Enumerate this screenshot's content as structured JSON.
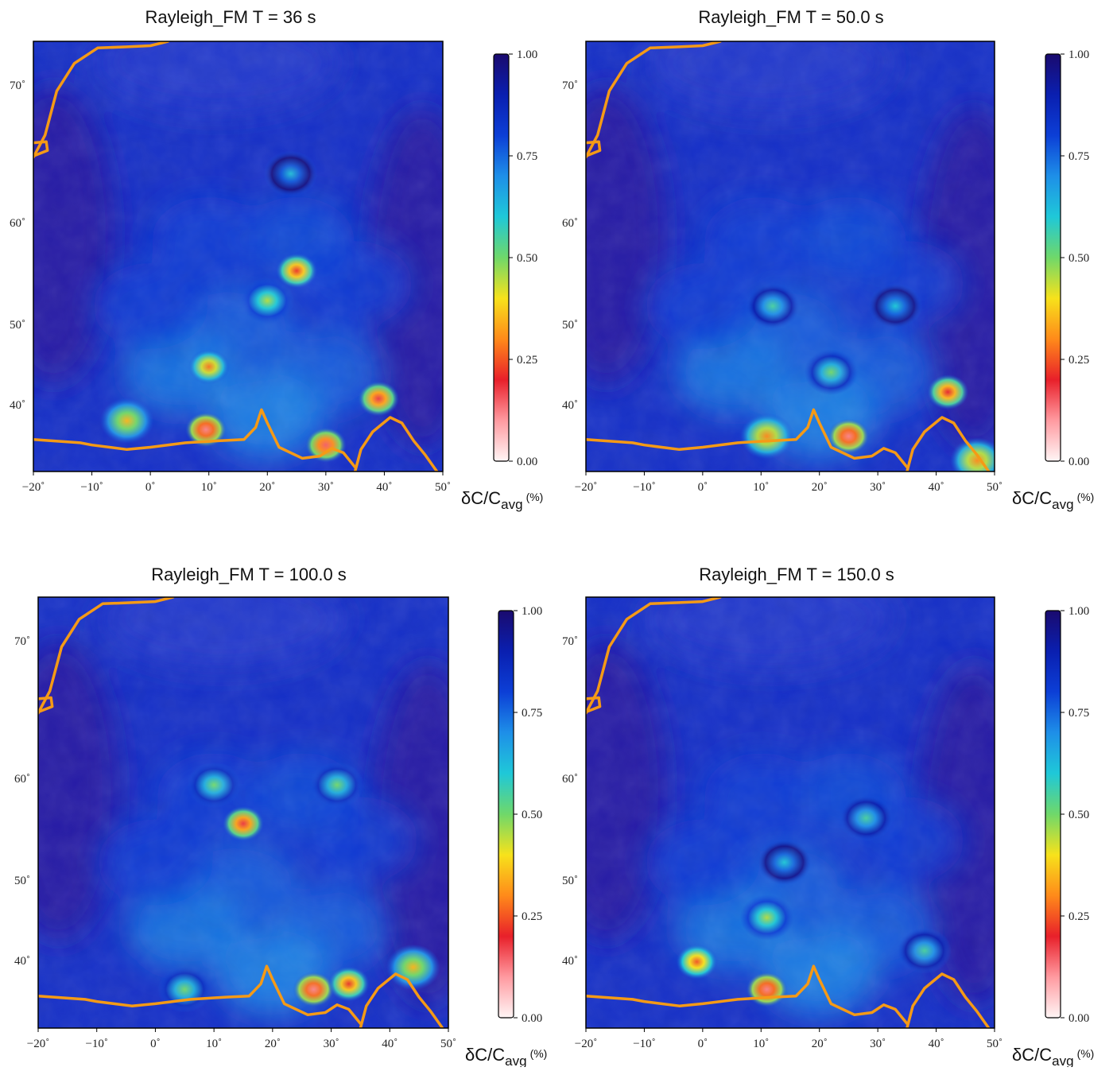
{
  "colors": {
    "colormap": [
      "#fff5f5",
      "#ff9aa0",
      "#e8202a",
      "#ff8a1a",
      "#f7e21b",
      "#6fd86a",
      "#1fc8d8",
      "#1e8fe8",
      "#0c3fd6",
      "#0a1fb0",
      "#1a0a6e"
    ],
    "base": "#1630c8",
    "deep": "#2a1aa0",
    "plate_boundary": "#f59a16",
    "frame": "#000000"
  },
  "chart_data": [
    {
      "type": "heatmap",
      "title": "Rayleigh_FM T = 36 s",
      "xlim": [
        -20,
        50
      ],
      "ylim": [
        35,
        74
      ],
      "x_ticks": [
        "−20˚",
        "−10˚",
        "0˚",
        "10˚",
        "20˚",
        "30˚",
        "40˚",
        "50˚"
      ],
      "y_ticks": [
        "70˚",
        "60˚",
        "50˚",
        "40˚"
      ],
      "colorbar": {
        "ticks": [
          "1.00",
          "0.75",
          "0.50",
          "0.25",
          "0.00"
        ],
        "range": [
          0,
          1
        ]
      },
      "unit": {
        "main": "δC/C",
        "sub": "avg",
        "suffix": "(%)"
      },
      "anomalies": [
        {
          "lon": 25,
          "lat": 53.2,
          "value": 0.22
        },
        {
          "lon": 10,
          "lat": 44.5,
          "value": 0.28
        },
        {
          "lon": 9.5,
          "lat": 38.8,
          "value": 0.12
        },
        {
          "lon": 39,
          "lat": 41.6,
          "value": 0.18
        },
        {
          "lon": 30,
          "lat": 37.4,
          "value": 0.15
        },
        {
          "lon": -4,
          "lat": 39.6,
          "value": 0.35
        },
        {
          "lon": 20,
          "lat": 50.5,
          "value": 0.45
        },
        {
          "lon": 24,
          "lat": 62,
          "value": 0.62
        }
      ]
    },
    {
      "type": "heatmap",
      "title": "Rayleigh_FM T = 50.0 s",
      "xlim": [
        -20,
        50
      ],
      "ylim": [
        35,
        74
      ],
      "x_ticks": [
        "−20˚",
        "−10˚",
        "0˚",
        "10˚",
        "20˚",
        "30˚",
        "40˚",
        "50˚"
      ],
      "y_ticks": [
        "70˚",
        "60˚",
        "50˚",
        "40˚"
      ],
      "colorbar": {
        "ticks": [
          "1.00",
          "0.75",
          "0.50",
          "0.25",
          "0.00"
        ],
        "range": [
          0,
          1
        ]
      },
      "unit": {
        "main": "δC/C",
        "sub": "avg",
        "suffix": "(%)"
      },
      "anomalies": [
        {
          "lon": 42,
          "lat": 42.2,
          "value": 0.2
        },
        {
          "lon": 25,
          "lat": 38.2,
          "value": 0.12
        },
        {
          "lon": 11,
          "lat": 38.2,
          "value": 0.3
        },
        {
          "lon": 12,
          "lat": 50,
          "value": 0.55
        },
        {
          "lon": 22,
          "lat": 44,
          "value": 0.5
        },
        {
          "lon": 33,
          "lat": 50,
          "value": 0.6
        },
        {
          "lon": 47,
          "lat": 36,
          "value": 0.3
        }
      ]
    },
    {
      "type": "heatmap",
      "title": "Rayleigh_FM T = 100.0 s",
      "xlim": [
        -20,
        50
      ],
      "ylim": [
        35,
        74
      ],
      "x_ticks": [
        "−20˚",
        "−10˚",
        "0˚",
        "10˚",
        "20˚",
        "30˚",
        "40˚",
        "50˚"
      ],
      "y_ticks": [
        "70˚",
        "60˚",
        "50˚",
        "40˚"
      ],
      "colorbar": {
        "ticks": [
          "1.00",
          "0.75",
          "0.50",
          "0.25",
          "0.00"
        ],
        "range": [
          0,
          1
        ]
      },
      "unit": {
        "main": "δC/C",
        "sub": "avg",
        "suffix": "(%)"
      },
      "anomalies": [
        {
          "lon": 15,
          "lat": 53.5,
          "value": 0.18
        },
        {
          "lon": 27,
          "lat": 38.5,
          "value": 0.12
        },
        {
          "lon": 33,
          "lat": 39,
          "value": 0.22
        },
        {
          "lon": 44,
          "lat": 40.5,
          "value": 0.35
        },
        {
          "lon": 10,
          "lat": 57,
          "value": 0.5
        },
        {
          "lon": 31,
          "lat": 57,
          "value": 0.5
        },
        {
          "lon": 5,
          "lat": 38.5,
          "value": 0.5
        }
      ]
    },
    {
      "type": "heatmap",
      "title": "Rayleigh_FM T = 150.0 s",
      "xlim": [
        -20,
        50
      ],
      "ylim": [
        35,
        74
      ],
      "x_ticks": [
        "−20˚",
        "−10˚",
        "0˚",
        "10˚",
        "20˚",
        "30˚",
        "40˚",
        "50˚"
      ],
      "y_ticks": [
        "70˚",
        "60˚",
        "50˚",
        "40˚"
      ],
      "colorbar": {
        "ticks": [
          "1.00",
          "0.75",
          "0.50",
          "0.25",
          "0.00"
        ],
        "range": [
          0,
          1
        ]
      },
      "unit": {
        "main": "δC/C",
        "sub": "avg",
        "suffix": "(%)"
      },
      "anomalies": [
        {
          "lon": 11,
          "lat": 38.5,
          "value": 0.12
        },
        {
          "lon": -1,
          "lat": 41,
          "value": 0.25
        },
        {
          "lon": 11,
          "lat": 45,
          "value": 0.45
        },
        {
          "lon": 28,
          "lat": 54,
          "value": 0.55
        },
        {
          "lon": 14,
          "lat": 50,
          "value": 0.6
        },
        {
          "lon": 38,
          "lat": 42,
          "value": 0.55
        }
      ]
    }
  ]
}
